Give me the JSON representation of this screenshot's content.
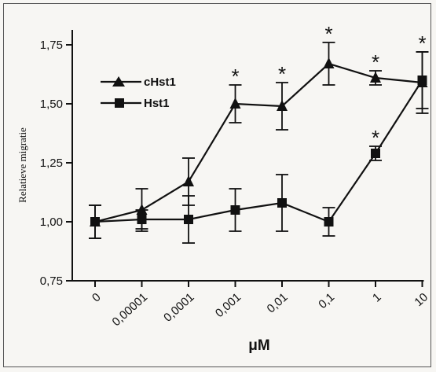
{
  "chart_data": {
    "type": "line",
    "categories": [
      "0",
      "0,00001",
      "0,0001",
      "0,001",
      "0,01",
      "0,1",
      "1",
      "10"
    ],
    "xlabel": "μM",
    "ylabel": "Relatieve migratie",
    "ylim": [
      0.75,
      1.8
    ],
    "y_ticks": [
      {
        "value": 0.75,
        "label": "0,75"
      },
      {
        "value": 1.0,
        "label": "1,00"
      },
      {
        "value": 1.25,
        "label": "1,25"
      },
      {
        "value": 1.5,
        "label": "1,50"
      },
      {
        "value": 1.75,
        "label": "1,75"
      }
    ],
    "grid": false,
    "legend_position": "top-left",
    "significance_marker": "*",
    "series": [
      {
        "name": "cHst1",
        "marker": "triangle",
        "values": [
          1.0,
          1.05,
          1.17,
          1.5,
          1.49,
          1.67,
          1.61,
          1.59
        ],
        "errors": [
          0.07,
          0.09,
          0.1,
          0.08,
          0.1,
          0.09,
          0.03,
          0.13
        ],
        "significant": [
          false,
          false,
          false,
          true,
          true,
          true,
          true,
          false
        ]
      },
      {
        "name": "Hst1",
        "marker": "square",
        "values": [
          1.0,
          1.01,
          1.01,
          1.05,
          1.08,
          1.0,
          1.29,
          1.6
        ],
        "errors": [
          0.07,
          0.04,
          0.1,
          0.09,
          0.12,
          0.06,
          0.03,
          0.12
        ],
        "significant": [
          false,
          false,
          false,
          false,
          false,
          false,
          true,
          true
        ]
      }
    ]
  }
}
